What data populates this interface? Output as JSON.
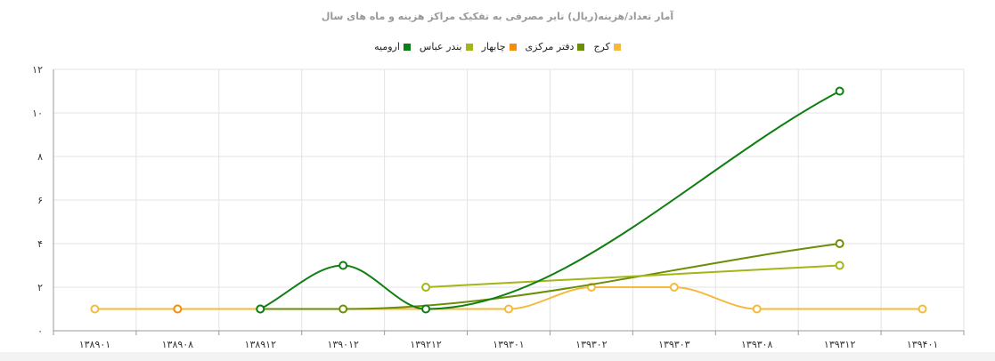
{
  "chart_data": {
    "type": "line",
    "title": "آمار تعداد/هزینه(ریال) تایر مصرفی به تفکیک مراکز هزینه و ماه های سال",
    "xlabel": "",
    "ylabel": "",
    "categories": [
      "۱۳۸۹۰۱",
      "۱۳۸۹۰۸",
      "۱۳۸۹۱۲",
      "۱۳۹۰۱۲",
      "۱۳۹۲۱۲",
      "۱۳۹۳۰۱",
      "۱۳۹۳۰۲",
      "۱۳۹۳۰۳",
      "۱۳۹۳۰۸",
      "۱۳۹۳۱۲",
      "۱۳۹۴۰۱"
    ],
    "yticks": [
      0,
      2,
      4,
      6,
      8,
      10,
      12
    ],
    "ytick_labels": [
      "۰",
      "۲",
      "۴",
      "۶",
      "۸",
      "۱۰",
      "۱۲"
    ],
    "ylim": [
      0,
      12
    ],
    "grid": true,
    "legend_position": "top",
    "series": [
      {
        "name": "کرج",
        "color": "#f5b93d",
        "values": [
          1,
          1,
          null,
          null,
          null,
          1,
          2,
          2,
          1,
          null,
          1
        ]
      },
      {
        "name": "دفتر مرکزی",
        "color": "#6b8e06",
        "values": [
          null,
          null,
          1,
          1,
          null,
          null,
          null,
          null,
          null,
          4,
          null
        ]
      },
      {
        "name": "چابهار",
        "color": "#f28f0c",
        "values": [
          null,
          1,
          null,
          null,
          null,
          null,
          null,
          null,
          null,
          null,
          null
        ]
      },
      {
        "name": "بندر عباس",
        "color": "#a4b516",
        "values": [
          null,
          null,
          null,
          null,
          2,
          null,
          null,
          null,
          null,
          3,
          null
        ]
      },
      {
        "name": "ارومیه",
        "color": "#0f7f12",
        "values": [
          null,
          null,
          1,
          3,
          1,
          null,
          null,
          null,
          null,
          11,
          null
        ]
      }
    ]
  }
}
